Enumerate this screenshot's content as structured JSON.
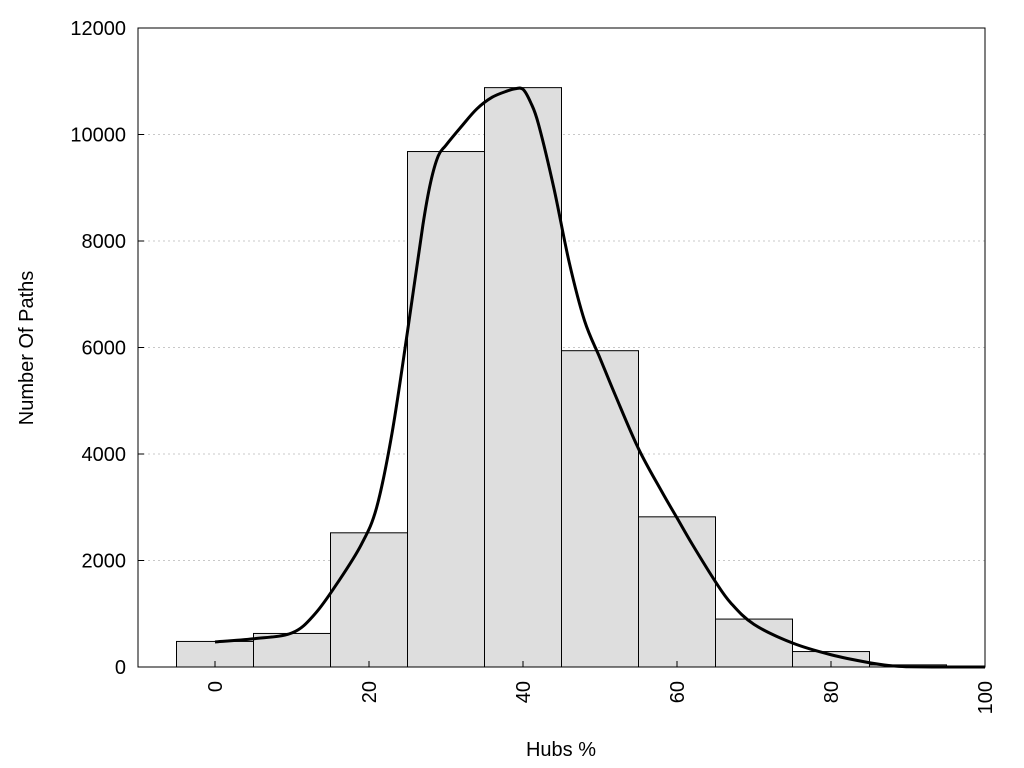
{
  "chart_data": {
    "type": "bar",
    "xlabel": "Hubs %",
    "ylabel": "Number Of Paths",
    "xlim": [
      -10,
      100
    ],
    "ylim": [
      0,
      12000
    ],
    "x_ticks": [
      "0",
      "20",
      "40",
      "60",
      "80",
      "100"
    ],
    "y_ticks": [
      "0",
      "2000",
      "4000",
      "6000",
      "8000",
      "10000",
      "12000"
    ],
    "grid": "horizontal dotted",
    "bin_width": 10,
    "bins": [
      {
        "center": 0,
        "value": 480
      },
      {
        "center": 10,
        "value": 630
      },
      {
        "center": 20,
        "value": 2520
      },
      {
        "center": 30,
        "value": 9680
      },
      {
        "center": 40,
        "value": 10880
      },
      {
        "center": 50,
        "value": 5940
      },
      {
        "center": 60,
        "value": 2820
      },
      {
        "center": 70,
        "value": 900
      },
      {
        "center": 80,
        "value": 290
      },
      {
        "center": 90,
        "value": 40
      }
    ],
    "curve": {
      "x": [
        0,
        5,
        10,
        13,
        16,
        19,
        21,
        23,
        25,
        27,
        28,
        29,
        30,
        32,
        34,
        36,
        38,
        39,
        40,
        41,
        42,
        44,
        46,
        48,
        50,
        52,
        55,
        58,
        60,
        62,
        65,
        67,
        70,
        75,
        80,
        85,
        88,
        90,
        95,
        100
      ],
      "y": [
        470,
        530,
        640,
        1000,
        1600,
        2300,
        3000,
        4400,
        6300,
        8300,
        9100,
        9600,
        9800,
        10150,
        10480,
        10700,
        10820,
        10860,
        10850,
        10600,
        10200,
        9000,
        7600,
        6500,
        5800,
        5100,
        4100,
        3300,
        2800,
        2300,
        1600,
        1200,
        800,
        450,
        230,
        80,
        20,
        5,
        0,
        0
      ]
    },
    "colors": {
      "bar_fill": "#dedede",
      "bar_stroke": "#000000",
      "curve": "#000000",
      "grid": "#c8c8c8"
    }
  }
}
